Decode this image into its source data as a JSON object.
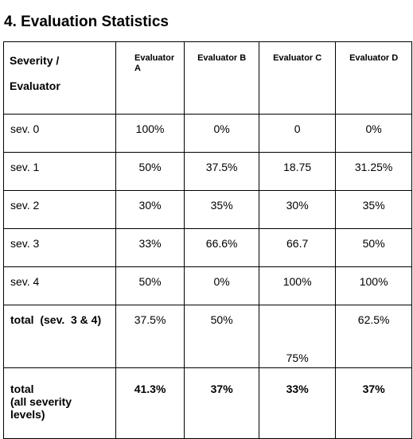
{
  "heading": "4. Evaluation Statistics",
  "table": {
    "header": {
      "first_line1": "Severity /",
      "first_line2": "Evaluator",
      "evaluators": [
        "Evaluator A",
        "Evaluator B",
        "Evaluator C",
        "Evaluator D"
      ]
    },
    "rows": [
      {
        "label": "sev. 0",
        "values": [
          "100%",
          "0%",
          "0",
          "0%"
        ]
      },
      {
        "label": "sev. 1",
        "values": [
          "50%",
          "37.5%",
          "18.75",
          "31.25%"
        ]
      },
      {
        "label": "sev. 2",
        "values": [
          "30%",
          "35%",
          "30%",
          "35%"
        ]
      },
      {
        "label": "sev. 3",
        "values": [
          "33%",
          "66.6%",
          "66.7",
          "50%"
        ]
      },
      {
        "label": "sev. 4",
        "values": [
          "50%",
          "0%",
          "100%",
          "100%"
        ]
      }
    ],
    "total_sev34": {
      "label": "total  (sev.  3 & 4)",
      "values": [
        "37.5%",
        "50%",
        "75%",
        "62.5%"
      ]
    },
    "total_all": {
      "label_lines": [
        "total",
        "(all severity",
        "levels)"
      ],
      "values": [
        "41.3%",
        "37%",
        "33%",
        "37%"
      ]
    }
  }
}
